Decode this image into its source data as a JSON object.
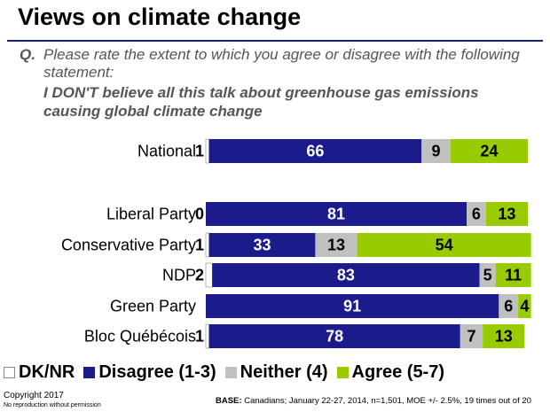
{
  "title": "Views on climate change",
  "question": {
    "label": "Q.",
    "text": "Please rate the extent to which you agree or disagree with the following statement:",
    "statement": "I DON'T believe all this talk about greenhouse gas emissions causing global climate change"
  },
  "chart_data": {
    "type": "bar",
    "orientation": "horizontal-stacked",
    "categories": [
      "National",
      "Liberal Party",
      "Conservative Party",
      "NDP",
      "Green Party",
      "Bloc Québécois"
    ],
    "series": [
      {
        "name": "DK/NR",
        "color": "#ffffff",
        "values": [
          1,
          0,
          1,
          2,
          0,
          1
        ],
        "labels": [
          "1",
          "0",
          "1",
          "2",
          "",
          "1"
        ]
      },
      {
        "name": "Disagree (1-3)",
        "color": "#1b1b8c",
        "values": [
          66,
          81,
          33,
          83,
          91,
          78
        ],
        "labels": [
          "66",
          "81",
          "33",
          "83",
          "91",
          "78"
        ]
      },
      {
        "name": "Neither (4)",
        "color": "#c0c0c0",
        "values": [
          9,
          6,
          13,
          5,
          6,
          7
        ],
        "labels": [
          "9",
          "6",
          "13",
          "5",
          "6",
          "7"
        ]
      },
      {
        "name": "Agree (5-7)",
        "color": "#99cc00",
        "values": [
          24,
          13,
          54,
          11,
          4,
          13
        ],
        "labels": [
          "24",
          "13",
          "54",
          "11",
          "4",
          "13"
        ]
      }
    ],
    "xlim": [
      0,
      100
    ]
  },
  "legend": {
    "items": [
      {
        "label": "DK/NR",
        "color": "#ffffff"
      },
      {
        "label": "Disagree (1-3)",
        "color": "#1b1b8c"
      },
      {
        "label": "Neither (4)",
        "color": "#c0c0c0"
      },
      {
        "label": "Agree (5-7)",
        "color": "#99cc00"
      }
    ]
  },
  "footer": {
    "copyright": "Copyright 2017",
    "reproduction": "No reproduction without permission",
    "base_label": "BASE:",
    "base_text": "Canadians; January 22-27, 2014, n=1,501, MOE +/- 2.5%, 19 times out of 20"
  }
}
